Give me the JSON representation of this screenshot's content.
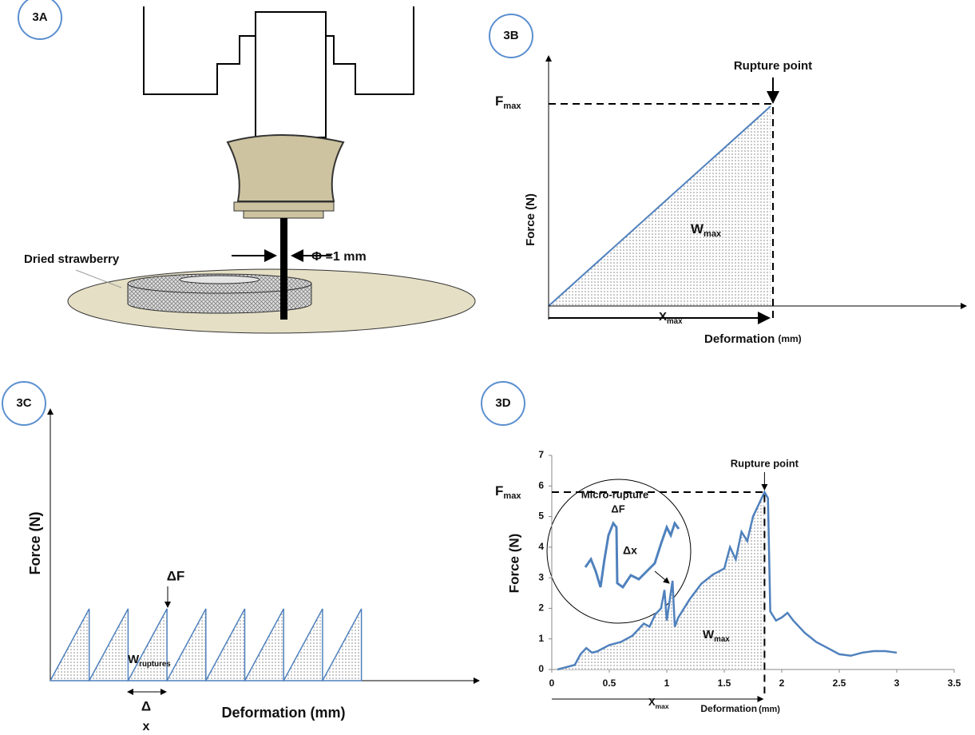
{
  "panels": {
    "a": {
      "label": "3A",
      "phi": "Φ =1 mm",
      "sample": "Dried strawberry"
    },
    "b": {
      "label": "3B",
      "y_label": "Force (N)",
      "x_label": "Deformation",
      "x_unit": "(mm)",
      "rupture": "Rupture point",
      "fmax": {
        "main": "F",
        "sub": "max"
      },
      "wmax": {
        "main": "W",
        "sub": "max"
      },
      "xmax": {
        "main": "X",
        "sub": "max"
      }
    },
    "c": {
      "label": "3C",
      "y_label": "Force (N)",
      "x_label": "Deformation (mm)",
      "delta_f": "ΔF",
      "w": {
        "main": "W",
        "sub": "ruptures"
      },
      "dx": [
        "Δ",
        "x"
      ]
    }
  },
  "chart_data": {
    "type": "line",
    "panel_label": "3D",
    "y_label": "Force (N)",
    "x_label": "Deformation",
    "x_unit": "(mm)",
    "x": [
      0.05,
      0.1,
      0.2,
      0.25,
      0.3,
      0.35,
      0.4,
      0.5,
      0.6,
      0.7,
      0.8,
      0.85,
      0.9,
      0.95,
      0.98,
      1.0,
      1.05,
      1.07,
      1.1,
      1.2,
      1.3,
      1.4,
      1.5,
      1.55,
      1.6,
      1.65,
      1.7,
      1.75,
      1.8,
      1.85,
      1.88,
      1.9,
      1.95,
      2.0,
      2.05,
      2.1,
      2.2,
      2.3,
      2.4,
      2.5,
      2.6,
      2.7,
      2.8,
      2.9,
      3.0
    ],
    "series": [
      {
        "color": "#4f81bd",
        "values": [
          0,
          0.05,
          0.15,
          0.5,
          0.7,
          0.55,
          0.6,
          0.8,
          0.9,
          1.1,
          1.5,
          1.4,
          1.8,
          2.0,
          2.6,
          1.6,
          2.9,
          1.4,
          1.7,
          2.3,
          2.8,
          3.1,
          3.3,
          4.0,
          3.6,
          4.5,
          4.2,
          5.0,
          5.4,
          5.8,
          5.6,
          1.9,
          1.6,
          1.7,
          1.85,
          1.6,
          1.2,
          0.9,
          0.7,
          0.5,
          0.45,
          0.55,
          0.6,
          0.6,
          0.55
        ]
      }
    ],
    "xlim": [
      0,
      3.5
    ],
    "ylim": [
      0,
      7
    ],
    "xticks": [
      0,
      0.5,
      1,
      1.5,
      2,
      2.5,
      3,
      3.5
    ],
    "yticks": [
      0,
      1,
      2,
      3,
      4,
      5,
      6,
      7
    ],
    "rupture": "Rupture point",
    "micro_rupture": "Micro-rupture",
    "delta_f": "ΔF",
    "delta_x": "Δx",
    "fmax": {
      "main": "F",
      "sub": "max"
    },
    "wmax": {
      "main": "W",
      "sub": "max"
    },
    "xmax": {
      "main": "X",
      "sub": "max"
    }
  }
}
